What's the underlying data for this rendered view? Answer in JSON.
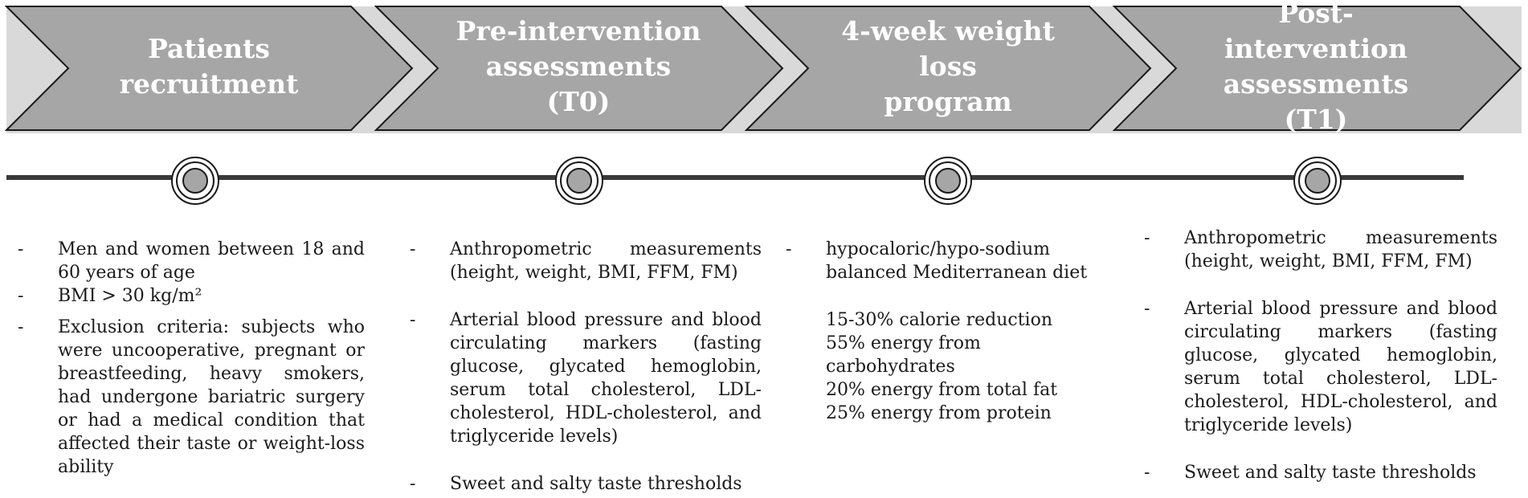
{
  "stages": [
    {
      "title": "Patients\nrecruitment",
      "items": [
        "Men and women between 18 and 60 years of age",
        "BMI > 30 kg/m²",
        "Exclusion criteria: subjects who were uncooperative, pregnant or breastfeeding, heavy smokers, had undergone bariatric surgery or had a medical condition that affected their taste or weight-loss ability"
      ]
    },
    {
      "title": "Pre-intervention\nassessments (T0)",
      "items": [
        "Anthropometric measurements (height, weight, BMI, FFM, FM)",
        "Arterial blood pressure and blood circulating markers (fasting glucose, glycated hemoglobin, serum total cholesterol, LDL-cholesterol, HDL-cholesterol, and triglyceride levels)",
        "Sweet and salty taste thresholds"
      ]
    },
    {
      "title": "4-week weight loss\nprogram",
      "items": [
        "hypocaloric/hypo-sodium balanced Mediterranean diet"
      ],
      "details": [
        "15-30% calorie reduction",
        "55% energy from carbohydrates",
        "20% energy from total fat",
        "25% energy from protein"
      ]
    },
    {
      "title": "Post-intervention\nassessments (T1)",
      "items": [
        "Anthropometric measurements (height, weight, BMI, FFM, FM)",
        "Arterial blood pressure and blood circulating markers (fasting glucose, glycated hemoglobin, serum total cholesterol, LDL-cholesterol, HDL-cholesterol, and triglyceride levels)",
        "Sweet and salty taste thresholds"
      ]
    }
  ],
  "bullet_marker": "-",
  "colors": {
    "chevron_fill": "#a6a6a6",
    "banner_background": "#d9d9d9",
    "timeline": "#3a3a3a",
    "node_fill": "#a6a6a6"
  }
}
